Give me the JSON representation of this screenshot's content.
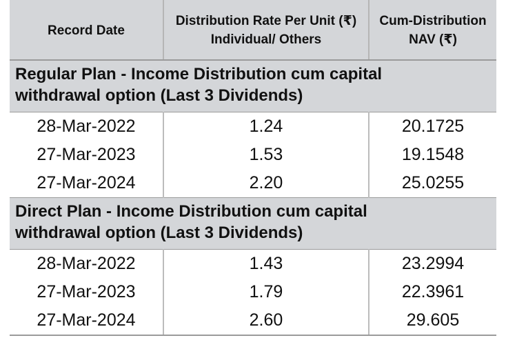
{
  "table": {
    "headers": {
      "record_date": "Record Date",
      "distribution_rate_line1": "Distribution Rate Per Unit  (₹)",
      "distribution_rate_line2": "Individual/ Others",
      "cum_nav_line1": "Cum-Distribution",
      "cum_nav_line2": "NAV (₹)"
    },
    "sections": [
      {
        "title_line1": "Regular Plan - Income Distribution cum capital",
        "title_line2": "withdrawal option (Last 3 Dividends)",
        "rows": [
          {
            "record_date": "28-Mar-2022",
            "rate": "1.24",
            "nav": "20.1725"
          },
          {
            "record_date": "27-Mar-2023",
            "rate": "1.53",
            "nav": "19.1548"
          },
          {
            "record_date": "27-Mar-2024",
            "rate": "2.20",
            "nav": "25.0255"
          }
        ]
      },
      {
        "title_line1": "Direct Plan - Income Distribution cum capital",
        "title_line2": "withdrawal option (Last 3 Dividends)",
        "rows": [
          {
            "record_date": "28-Mar-2022",
            "rate": "1.43",
            "nav": "23.2994"
          },
          {
            "record_date": "27-Mar-2023",
            "rate": "1.79",
            "nav": "22.3961"
          },
          {
            "record_date": "27-Mar-2024",
            "rate": "2.60",
            "nav": "29.605"
          }
        ]
      }
    ]
  }
}
